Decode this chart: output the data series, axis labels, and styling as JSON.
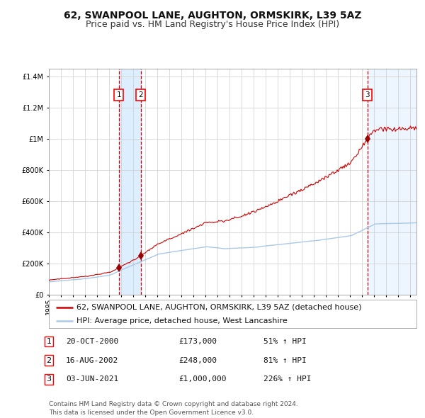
{
  "title": "62, SWANPOOL LANE, AUGHTON, ORMSKIRK, L39 5AZ",
  "subtitle": "Price paid vs. HM Land Registry's House Price Index (HPI)",
  "ylim": [
    0,
    1450000
  ],
  "xlim_start": 1995.0,
  "xlim_end": 2025.5,
  "background_color": "#ffffff",
  "grid_color": "#cccccc",
  "hpi_color": "#aac8e8",
  "price_color": "#cc0000",
  "sale_marker_color": "#990000",
  "purchases": [
    {
      "date_num": 2000.8,
      "price": 173000,
      "label": "1"
    },
    {
      "date_num": 2002.62,
      "price": 248000,
      "label": "2"
    },
    {
      "date_num": 2021.42,
      "price": 1000000,
      "label": "3"
    }
  ],
  "vline_color": "#cc0000",
  "shade_color": "#ddeeff",
  "legend_label_red": "62, SWANPOOL LANE, AUGHTON, ORMSKIRK, L39 5AZ (detached house)",
  "legend_label_blue": "HPI: Average price, detached house, West Lancashire",
  "table_rows": [
    {
      "num": "1",
      "date": "20-OCT-2000",
      "price": "£173,000",
      "hpi": "51% ↑ HPI"
    },
    {
      "num": "2",
      "date": "16-AUG-2002",
      "price": "£248,000",
      "hpi": "81% ↑ HPI"
    },
    {
      "num": "3",
      "date": "03-JUN-2021",
      "price": "£1,000,000",
      "hpi": "226% ↑ HPI"
    }
  ],
  "footer": "Contains HM Land Registry data © Crown copyright and database right 2024.\nThis data is licensed under the Open Government Licence v3.0.",
  "title_fontsize": 10,
  "subtitle_fontsize": 9,
  "tick_fontsize": 7,
  "legend_fontsize": 8,
  "table_fontsize": 8,
  "footer_fontsize": 6.5
}
